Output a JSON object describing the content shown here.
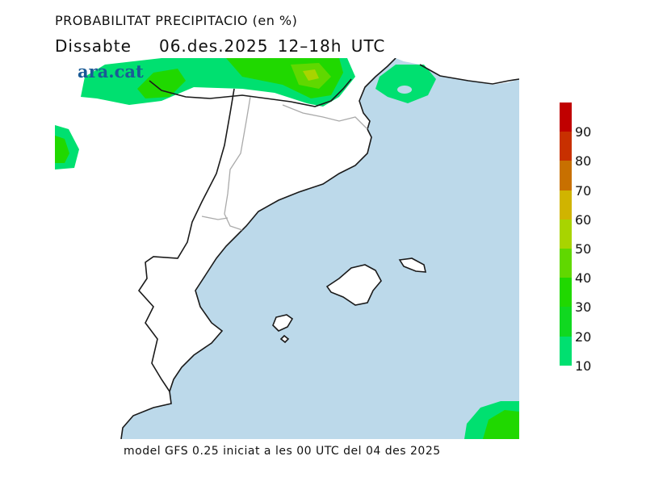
{
  "title": "PROBABILITAT PRECIPITACIO (en %)",
  "subtitle": "Dissabte   06.des.2025 12–18h UTC",
  "logo": "ara.cat",
  "footer": "model GFS 0.25 iniciat a les 00 UTC del 04 des 2025",
  "colors": {
    "sea": "#bcd9ea",
    "land": "#ffffff",
    "coast": "#1a1a1a",
    "border": "#aaaaaa"
  },
  "legend": {
    "labels": [
      "90",
      "80",
      "70",
      "60",
      "50",
      "40",
      "30",
      "20",
      "10"
    ],
    "colors": [
      "#c00000",
      "#c83000",
      "#c87000",
      "#d0b400",
      "#a8d400",
      "#60d800",
      "#20d800",
      "#10d820",
      "#00e070"
    ]
  }
}
